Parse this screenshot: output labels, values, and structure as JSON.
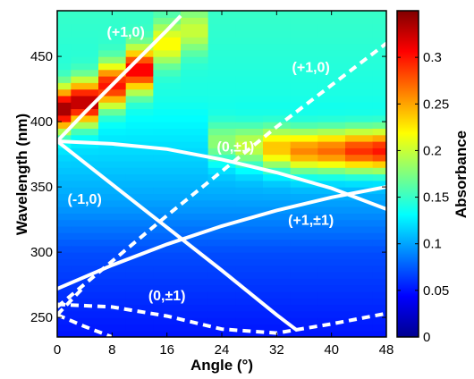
{
  "chart_data": {
    "type": "heatmap",
    "title": "",
    "xlabel": "Angle (°)",
    "ylabel": "Wavelength (nm)",
    "xlim": [
      0,
      48
    ],
    "ylim": [
      235,
      485
    ],
    "x_ticks": [
      0,
      8,
      16,
      24,
      32,
      40,
      48
    ],
    "y_ticks": [
      250,
      300,
      350,
      400,
      450
    ],
    "colorbar": {
      "label": "Absorbance",
      "range": [
        0,
        0.35
      ],
      "ticks": [
        0,
        0.05,
        0.1,
        0.15,
        0.2,
        0.25,
        0.3
      ],
      "tick_labels": [
        "0",
        "0.05",
        "0.1",
        "0.15",
        "0.2",
        "0.25",
        "0.3"
      ],
      "colormap": "jet"
    },
    "heatmap": {
      "angles": [
        0,
        4,
        8,
        12,
        16,
        20,
        24,
        28,
        32,
        36,
        40,
        44,
        48
      ],
      "wavelength_min": 235,
      "wavelength_max": 485,
      "wavelength_step": 5,
      "baseline_absorbance": [
        {
          "wavelength": 235,
          "value": 0.05
        },
        {
          "wavelength": 300,
          "value": 0.07
        },
        {
          "wavelength": 340,
          "value": 0.1
        },
        {
          "wavelength": 380,
          "value": 0.12
        },
        {
          "wavelength": 420,
          "value": 0.14
        },
        {
          "wavelength": 485,
          "value": 0.15
        }
      ],
      "peak_band": [
        {
          "angle": 0,
          "wavelength": 410,
          "value": 0.34
        },
        {
          "angle": 4,
          "wavelength": 415,
          "value": 0.33
        },
        {
          "angle": 8,
          "wavelength": 428,
          "value": 0.3
        },
        {
          "angle": 12,
          "wavelength": 440,
          "value": 0.31
        },
        {
          "angle": 16,
          "wavelength": 460,
          "value": 0.22
        },
        {
          "angle": 20,
          "wavelength": 470,
          "value": 0.2
        },
        {
          "angle": 24,
          "wavelength": 385,
          "value": 0.18
        },
        {
          "angle": 28,
          "wavelength": 382,
          "value": 0.2
        },
        {
          "angle": 32,
          "wavelength": 380,
          "value": 0.24
        },
        {
          "angle": 36,
          "wavelength": 378,
          "value": 0.26
        },
        {
          "angle": 40,
          "wavelength": 378,
          "value": 0.27
        },
        {
          "angle": 44,
          "wavelength": 378,
          "value": 0.29
        },
        {
          "angle": 48,
          "wavelength": 378,
          "value": 0.3
        }
      ]
    },
    "series": [
      {
        "name": "(+1,0)",
        "style": "solid",
        "x": [
          0,
          4,
          8,
          12,
          16,
          18
        ],
        "y": [
          385,
          407,
          428,
          449,
          470,
          481
        ]
      },
      {
        "name": "(+1,0)",
        "style": "dashed",
        "x": [
          0,
          8,
          16,
          24,
          32,
          40,
          48
        ],
        "y": [
          258,
          293,
          328,
          362,
          396,
          428,
          460
        ]
      },
      {
        "name": "(0,±1)",
        "style": "solid",
        "x": [
          0,
          8,
          16,
          24,
          32,
          40,
          48
        ],
        "y": [
          385,
          383,
          379,
          371,
          361,
          349,
          333
        ]
      },
      {
        "name": "(-1,0)",
        "style": "solid",
        "x": [
          0,
          8,
          16,
          24,
          32,
          35
        ],
        "y": [
          385,
          352,
          319,
          286,
          252,
          240
        ]
      },
      {
        "name": "(+1,±1)",
        "style": "solid",
        "x": [
          0,
          8,
          16,
          24,
          32,
          40,
          48
        ],
        "y": [
          272,
          290,
          306,
          320,
          332,
          342,
          350
        ]
      },
      {
        "name": "(0,±1)",
        "style": "dashed",
        "x": [
          0,
          8,
          16,
          24,
          32,
          40,
          48
        ],
        "y": [
          260,
          258,
          251,
          241,
          238,
          245,
          253
        ]
      },
      {
        "name": "",
        "style": "dashed",
        "x": [
          0,
          4,
          8
        ],
        "y": [
          252,
          243,
          235
        ]
      },
      {
        "name": "",
        "style": "dashed",
        "x": [
          0,
          2,
          4
        ],
        "y": [
          252,
          263,
          274
        ]
      }
    ],
    "annotations": [
      {
        "text": "(+1,0)",
        "x": 10,
        "y": 465
      },
      {
        "text": "(+1,0)",
        "x": 37,
        "y": 438
      },
      {
        "text": "(0,±1)",
        "x": 26,
        "y": 377
      },
      {
        "text": "(-1,0)",
        "x": 4,
        "y": 337
      },
      {
        "text": "(+1,±1)",
        "x": 37,
        "y": 321
      },
      {
        "text": "(0,±1)",
        "x": 16,
        "y": 263
      }
    ]
  }
}
